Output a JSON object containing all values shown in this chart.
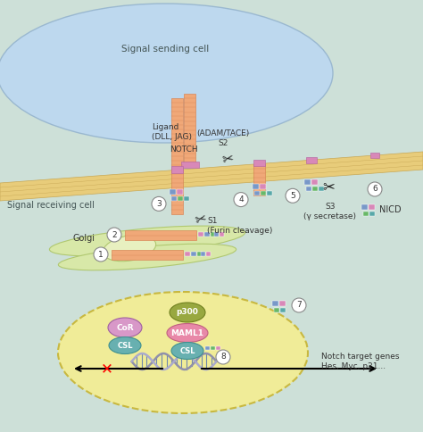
{
  "bg_color": "#cde0d8",
  "sending_cell_color": "#bdd8ee",
  "sending_cell_edge": "#9ab8d0",
  "membrane_color": "#e8cc7a",
  "membrane_edge": "#c8a855",
  "receiving_bg": "#d8e4dc",
  "golgi_outer_color": "#d8e8a8",
  "golgi_inner_color": "#e8f0c0",
  "golgi_edge": "#b0c870",
  "nucleus_color": "#f0ec98",
  "nucleus_edge": "#c8b840",
  "receptor_color": "#f0a878",
  "receptor_lines": "#d88858",
  "pink_block": "#d888b8",
  "blue_block": "#7898c8",
  "green_block": "#68b868",
  "teal_block": "#58a8a8",
  "labels": {
    "signal_sending": "Signal sending cell",
    "signal_receiving": "Signal receiving cell",
    "ligand": "Ligand\n(DLL, JAG)",
    "notch": "NOTCH",
    "adam_tace": "(ADAM/TACE)\nS2",
    "s3": "S3\n(γ secretase)",
    "nicd": "NICD",
    "golgi": "Golgi",
    "s1": "S1\n(Furin cleavage)",
    "notch_targets": "Notch target genes\nHes, Myc, p21...",
    "p300": "p300",
    "maml1": "MAML1",
    "cor": "CoR",
    "csl": "CSL"
  },
  "cor_color": "#d898c8",
  "csl_color": "#68b0b0",
  "p300_color": "#98a840",
  "maml1_color": "#e888a8"
}
